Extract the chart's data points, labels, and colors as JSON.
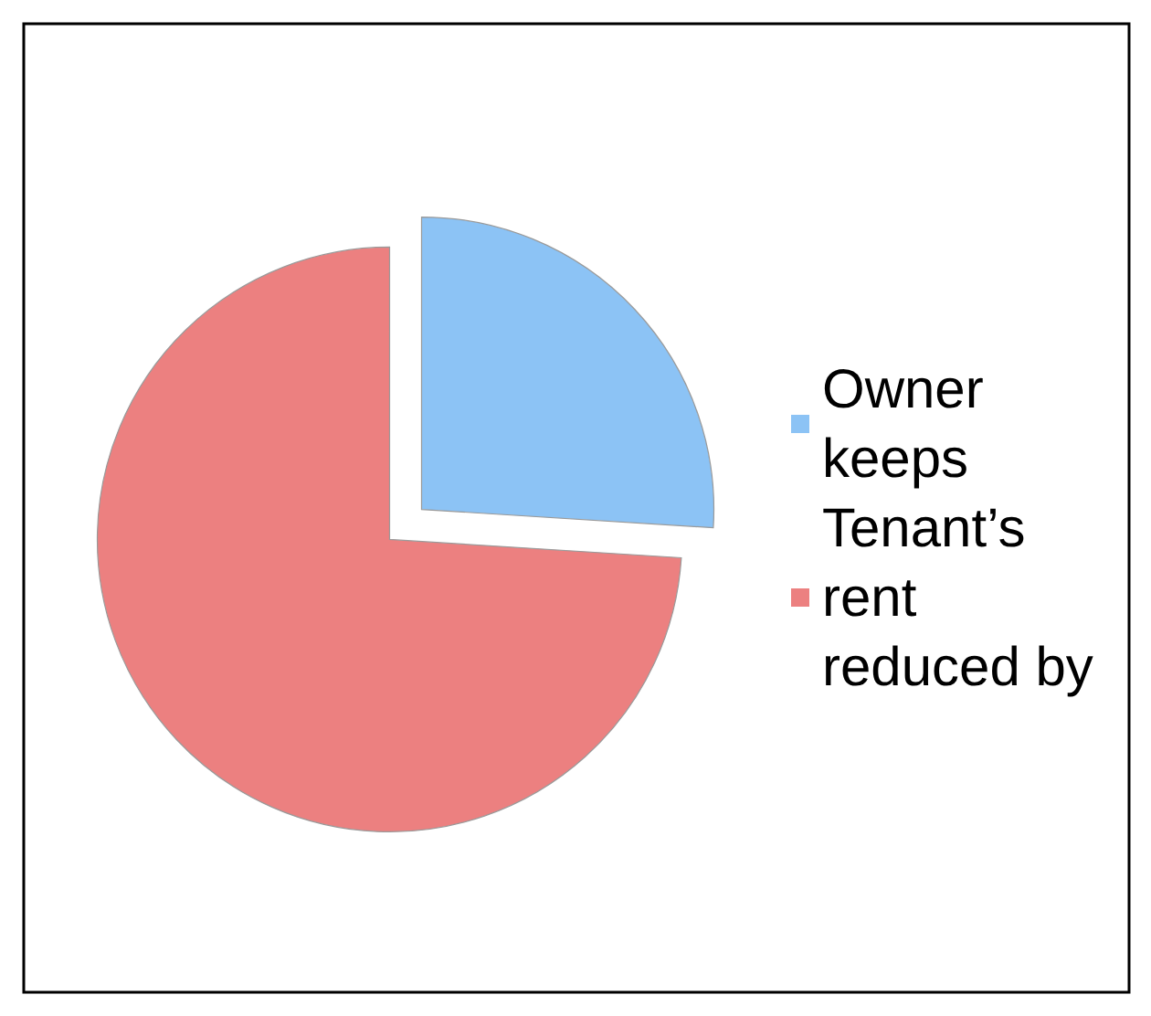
{
  "chart_data": {
    "type": "pie",
    "categories": [
      "Owner keeps",
      "Tenant’s rent reduced by"
    ],
    "values": [
      26,
      74
    ],
    "colors": [
      "#8cc3f5",
      "#ec8080"
    ],
    "legend": "right"
  }
}
